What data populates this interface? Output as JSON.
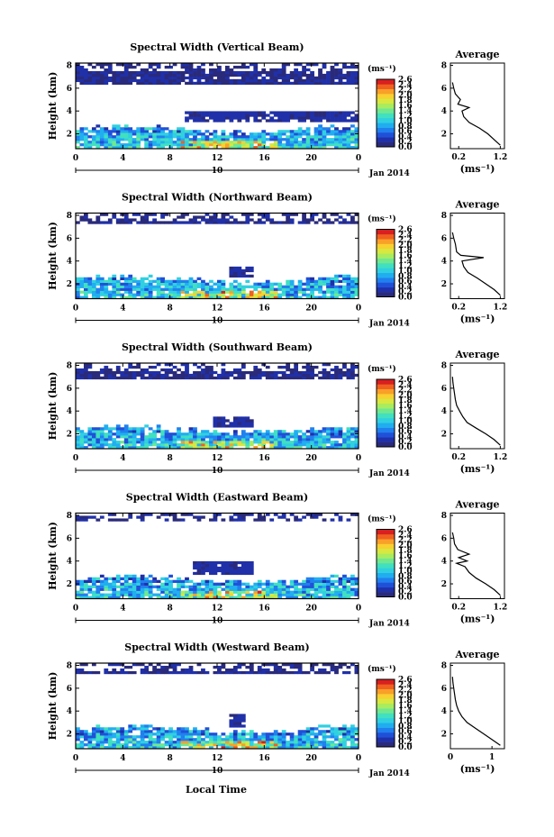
{
  "figure": {
    "xlabel": "Local Time",
    "date_label": "Jan 2014",
    "day_label": "10",
    "colorbar_unit": "(ms⁻¹)",
    "colorbar_ticks": [
      "2.6",
      "2.4",
      "2.2",
      "2.0",
      "1.8",
      "1.6",
      "1.4",
      "1.2",
      "1.0",
      "0.8",
      "0.6",
      "0.4",
      "0.2",
      "0.0"
    ],
    "colormap": [
      "#2a2a7a",
      "#2030a8",
      "#2050d8",
      "#2080ee",
      "#20aef0",
      "#30d0e0",
      "#40e0c0",
      "#70e890",
      "#a8ec60",
      "#d8e840",
      "#f8d030",
      "#f8a028",
      "#f06020",
      "#d82020"
    ],
    "avg_title": "Average",
    "avg_xlabel": "(ms⁻¹)"
  },
  "chart_data": [
    {
      "type": "heatmap",
      "title": "Spectral Width (Vertical Beam)",
      "ylabel": "Height (km)",
      "x_ticks": [
        "0",
        "4",
        "8",
        "12",
        "16",
        "20",
        "0"
      ],
      "y_ticks": [
        "2",
        "4",
        "6",
        "8"
      ],
      "xlim": [
        0,
        24
      ],
      "ylim": [
        0.7,
        8.2
      ],
      "colorbar_range": [
        0.0,
        2.6
      ],
      "cloud_layers": [
        {
          "t0": 9.2,
          "t1": 24,
          "h0": 3.1,
          "h1": 3.9,
          "value": 0.15
        },
        {
          "t0": 0,
          "t1": 24,
          "h0": 6.4,
          "h1": 8.2,
          "value": 0.1
        }
      ],
      "average_profile": {
        "title": "Average",
        "xlabel": "(ms⁻¹)",
        "x_ticks": [
          "0.2",
          "1.2"
        ],
        "x_tick_values": [
          0.2,
          1.2
        ],
        "xlim": [
          0.0,
          1.3
        ],
        "y_ticks": [
          "2",
          "4",
          "6",
          "8"
        ],
        "ylim": [
          0.7,
          8.2
        ],
        "height": [
          1.0,
          1.5,
          2.0,
          2.5,
          3.0,
          3.5,
          4.0,
          4.3,
          4.6,
          5.0,
          5.5,
          6.0,
          6.5
        ],
        "width": [
          1.2,
          1.05,
          0.9,
          0.7,
          0.45,
          0.32,
          0.28,
          0.45,
          0.18,
          0.24,
          0.12,
          0.08,
          0.05
        ]
      }
    },
    {
      "type": "heatmap",
      "title": "Spectral Width (Northward Beam)",
      "ylabel": "Height (km)",
      "x_ticks": [
        "0",
        "4",
        "8",
        "12",
        "16",
        "20",
        "0"
      ],
      "y_ticks": [
        "2",
        "4",
        "6",
        "8"
      ],
      "xlim": [
        0,
        24
      ],
      "ylim": [
        0.7,
        8.2
      ],
      "colorbar_range": [
        0.0,
        2.6
      ],
      "cloud_layers": [
        {
          "t0": 13.2,
          "t1": 15.0,
          "h0": 2.5,
          "h1": 3.6,
          "value": 0.15
        },
        {
          "t0": 0,
          "t1": 24,
          "h0": 7.2,
          "h1": 8.2,
          "value": 0.1
        }
      ],
      "average_profile": {
        "title": "Average",
        "xlabel": "(ms⁻¹)",
        "x_ticks": [
          "0.2",
          "1.2"
        ],
        "x_tick_values": [
          0.2,
          1.2
        ],
        "xlim": [
          0.0,
          1.3
        ],
        "y_ticks": [
          "2",
          "4",
          "6",
          "8"
        ],
        "ylim": [
          0.7,
          8.2
        ],
        "height": [
          1.0,
          1.5,
          2.0,
          2.5,
          3.0,
          3.5,
          4.0,
          4.3,
          4.5,
          4.8,
          5.5,
          6.0,
          6.5
        ],
        "width": [
          1.2,
          1.05,
          0.85,
          0.65,
          0.42,
          0.32,
          0.28,
          0.8,
          0.25,
          0.15,
          0.12,
          0.08,
          0.05
        ]
      }
    },
    {
      "type": "heatmap",
      "title": "Spectral Width (Southward Beam)",
      "ylabel": "Height (km)",
      "x_ticks": [
        "0",
        "4",
        "8",
        "12",
        "16",
        "20",
        "0"
      ],
      "y_ticks": [
        "2",
        "4",
        "6",
        "8"
      ],
      "xlim": [
        0,
        24
      ],
      "ylim": [
        0.7,
        8.2
      ],
      "colorbar_range": [
        0.0,
        2.6
      ],
      "cloud_layers": [
        {
          "t0": 11.5,
          "t1": 15.0,
          "h0": 2.6,
          "h1": 3.6,
          "value": 0.15
        },
        {
          "t0": 0,
          "t1": 24,
          "h0": 6.8,
          "h1": 8.2,
          "value": 0.1
        }
      ],
      "average_profile": {
        "title": "Average",
        "xlabel": "(ms⁻¹)",
        "x_ticks": [
          "0.2",
          "1.2"
        ],
        "x_tick_values": [
          0.2,
          1.2
        ],
        "xlim": [
          0.0,
          1.3
        ],
        "y_ticks": [
          "2",
          "4",
          "6",
          "8"
        ],
        "ylim": [
          0.7,
          8.2
        ],
        "height": [
          1.0,
          1.5,
          2.0,
          2.5,
          3.0,
          3.5,
          4.0,
          4.5,
          5.0,
          5.5,
          6.0,
          6.5,
          7.0
        ],
        "width": [
          1.2,
          1.05,
          0.85,
          0.62,
          0.4,
          0.3,
          0.22,
          0.15,
          0.12,
          0.1,
          0.08,
          0.06,
          0.05
        ]
      }
    },
    {
      "type": "heatmap",
      "title": "Spectral Width (Eastward Beam)",
      "ylabel": "Height (km)",
      "x_ticks": [
        "0",
        "4",
        "8",
        "12",
        "16",
        "20",
        "0"
      ],
      "y_ticks": [
        "2",
        "4",
        "6",
        "8"
      ],
      "xlim": [
        0,
        24
      ],
      "ylim": [
        0.7,
        8.2
      ],
      "colorbar_range": [
        0.0,
        2.6
      ],
      "cloud_layers": [
        {
          "t0": 9.8,
          "t1": 15.2,
          "h0": 2.9,
          "h1": 4.0,
          "value": 0.15
        },
        {
          "t0": 0,
          "t1": 24,
          "h0": 7.5,
          "h1": 8.2,
          "value": 0.1
        }
      ],
      "average_profile": {
        "title": "Average",
        "xlabel": "(ms⁻¹)",
        "x_ticks": [
          "0.2",
          "1.2"
        ],
        "x_tick_values": [
          0.2,
          1.2
        ],
        "xlim": [
          0.0,
          1.3
        ],
        "y_ticks": [
          "2",
          "4",
          "6",
          "8"
        ],
        "ylim": [
          0.7,
          8.2
        ],
        "height": [
          1.0,
          1.5,
          2.0,
          2.5,
          3.0,
          3.5,
          3.8,
          4.0,
          4.3,
          4.6,
          5.0,
          5.5,
          6.0,
          6.5
        ],
        "width": [
          1.2,
          1.05,
          0.85,
          0.62,
          0.45,
          0.35,
          0.15,
          0.4,
          0.2,
          0.45,
          0.18,
          0.1,
          0.08,
          0.05
        ]
      }
    },
    {
      "type": "heatmap",
      "title": "Spectral Width (Westward Beam)",
      "ylabel": "Height (km)",
      "x_ticks": [
        "0",
        "4",
        "8",
        "12",
        "16",
        "20",
        "0"
      ],
      "y_ticks": [
        "2",
        "4",
        "6",
        "8"
      ],
      "xlim": [
        0,
        24
      ],
      "ylim": [
        0.7,
        8.2
      ],
      "colorbar_range": [
        0.0,
        2.6
      ],
      "cloud_layers": [
        {
          "t0": 13.2,
          "t1": 14.4,
          "h0": 2.5,
          "h1": 3.8,
          "value": 0.15
        },
        {
          "t0": 0,
          "t1": 24,
          "h0": 7.3,
          "h1": 8.2,
          "value": 0.1
        }
      ],
      "average_profile": {
        "title": "Average",
        "xlabel": "(ms⁻¹)",
        "x_ticks": [
          "0",
          "1"
        ],
        "x_tick_values": [
          0.0,
          1.0
        ],
        "xlim": [
          0.0,
          1.3
        ],
        "y_ticks": [
          "2",
          "4",
          "6",
          "8"
        ],
        "ylim": [
          0.7,
          8.2
        ],
        "height": [
          1.0,
          1.5,
          2.0,
          2.5,
          3.0,
          3.5,
          4.0,
          4.5,
          5.0,
          5.5,
          6.0,
          6.5,
          7.0
        ],
        "width": [
          1.2,
          1.0,
          0.8,
          0.6,
          0.4,
          0.28,
          0.2,
          0.15,
          0.12,
          0.1,
          0.08,
          0.06,
          0.05
        ]
      }
    }
  ]
}
